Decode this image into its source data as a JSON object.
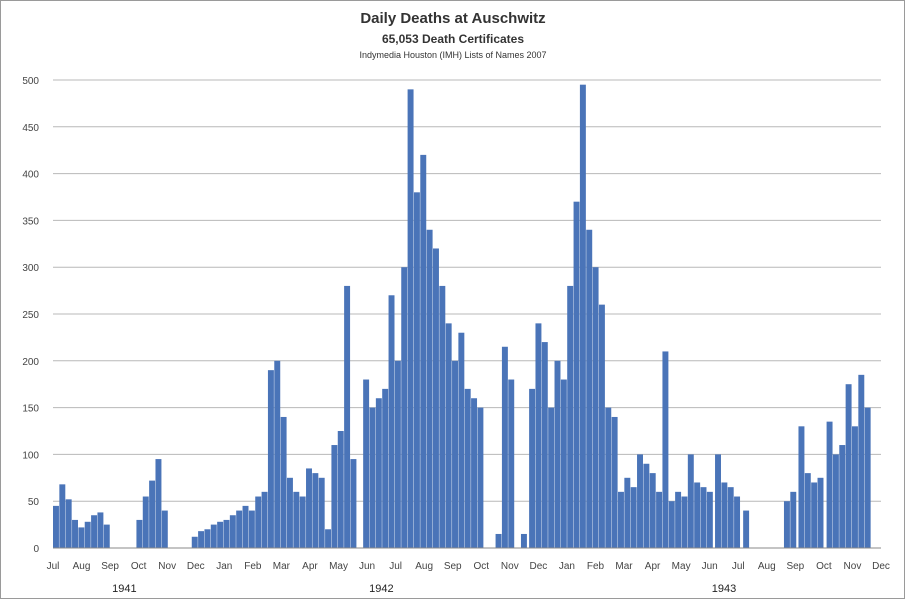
{
  "chart_data": {
    "type": "bar",
    "title": "Daily Deaths at Auschwitz",
    "subtitle": "65,053 Death Certificates",
    "source": "Indymedia Houston (IMH) Lists of Names 2007",
    "xlabel": "",
    "ylabel": "",
    "ylim": [
      0,
      500
    ],
    "yticks": [
      0,
      50,
      100,
      150,
      200,
      250,
      300,
      350,
      400,
      450,
      500
    ],
    "grid": true,
    "legend": "none",
    "bar_color": "#4a74b8",
    "x_start": "1941-07-01",
    "x_end": "1943-12-31",
    "month_labels": [
      "Jul",
      "Aug",
      "Sep",
      "Oct",
      "Nov",
      "Dec",
      "Jan",
      "Feb",
      "Mar",
      "Apr",
      "May",
      "Jun",
      "Jul",
      "Aug",
      "Sep",
      "Oct",
      "Nov",
      "Dec",
      "Jan",
      "Feb",
      "Mar",
      "Apr",
      "May",
      "Jun",
      "Jul",
      "Aug",
      "Sep",
      "Oct",
      "Nov",
      "Dec"
    ],
    "year_labels": [
      "1941",
      "1942",
      "1943"
    ],
    "series": [
      {
        "values": [
          [
            "1941-07-01",
            45
          ],
          [
            "1941-07-08",
            68
          ],
          [
            "1941-07-15",
            52
          ],
          [
            "1941-07-22",
            30
          ],
          [
            "1941-07-29",
            22
          ],
          [
            "1941-08-05",
            28
          ],
          [
            "1941-08-12",
            35
          ],
          [
            "1941-08-19",
            38
          ],
          [
            "1941-08-26",
            25
          ],
          [
            "1941-10-01",
            30
          ],
          [
            "1941-10-08",
            55
          ],
          [
            "1941-10-15",
            72
          ],
          [
            "1941-10-22",
            95
          ],
          [
            "1941-10-29",
            40
          ],
          [
            "1941-12-01",
            12
          ],
          [
            "1941-12-08",
            18
          ],
          [
            "1941-12-15",
            20
          ],
          [
            "1941-12-22",
            25
          ],
          [
            "1941-12-29",
            28
          ],
          [
            "1942-01-05",
            30
          ],
          [
            "1942-01-12",
            35
          ],
          [
            "1942-01-19",
            40
          ],
          [
            "1942-01-26",
            45
          ],
          [
            "1942-02-02",
            40
          ],
          [
            "1942-02-09",
            55
          ],
          [
            "1942-02-16",
            60
          ],
          [
            "1942-02-23",
            190
          ],
          [
            "1942-03-02",
            200
          ],
          [
            "1942-03-09",
            140
          ],
          [
            "1942-03-16",
            75
          ],
          [
            "1942-03-23",
            60
          ],
          [
            "1942-03-30",
            55
          ],
          [
            "1942-04-06",
            85
          ],
          [
            "1942-04-13",
            80
          ],
          [
            "1942-04-20",
            75
          ],
          [
            "1942-04-27",
            20
          ],
          [
            "1942-05-04",
            110
          ],
          [
            "1942-05-11",
            125
          ],
          [
            "1942-05-18",
            280
          ],
          [
            "1942-05-25",
            95
          ],
          [
            "1942-06-08",
            180
          ],
          [
            "1942-06-15",
            150
          ],
          [
            "1942-06-22",
            160
          ],
          [
            "1942-06-29",
            170
          ],
          [
            "1942-07-06",
            270
          ],
          [
            "1942-07-13",
            200
          ],
          [
            "1942-07-20",
            300
          ],
          [
            "1942-07-27",
            490
          ],
          [
            "1942-08-03",
            380
          ],
          [
            "1942-08-10",
            420
          ],
          [
            "1942-08-17",
            340
          ],
          [
            "1942-08-24",
            320
          ],
          [
            "1942-08-31",
            280
          ],
          [
            "1942-09-07",
            240
          ],
          [
            "1942-09-14",
            200
          ],
          [
            "1942-09-21",
            230
          ],
          [
            "1942-09-28",
            170
          ],
          [
            "1942-10-05",
            160
          ],
          [
            "1942-10-12",
            150
          ],
          [
            "1942-11-01",
            15
          ],
          [
            "1942-11-08",
            215
          ],
          [
            "1942-11-15",
            180
          ],
          [
            "1942-11-29",
            15
          ],
          [
            "1942-12-08",
            170
          ],
          [
            "1942-12-15",
            240
          ],
          [
            "1942-12-22",
            220
          ],
          [
            "1942-12-29",
            150
          ],
          [
            "1943-01-05",
            200
          ],
          [
            "1943-01-12",
            180
          ],
          [
            "1943-01-19",
            280
          ],
          [
            "1943-01-26",
            370
          ],
          [
            "1943-02-02",
            495
          ],
          [
            "1943-02-09",
            340
          ],
          [
            "1943-02-16",
            300
          ],
          [
            "1943-02-23",
            260
          ],
          [
            "1943-03-02",
            150
          ],
          [
            "1943-03-09",
            140
          ],
          [
            "1943-03-16",
            60
          ],
          [
            "1943-03-23",
            75
          ],
          [
            "1943-03-30",
            65
          ],
          [
            "1943-04-06",
            100
          ],
          [
            "1943-04-13",
            90
          ],
          [
            "1943-04-20",
            80
          ],
          [
            "1943-04-27",
            60
          ],
          [
            "1943-05-04",
            210
          ],
          [
            "1943-05-11",
            50
          ],
          [
            "1943-05-18",
            60
          ],
          [
            "1943-05-25",
            55
          ],
          [
            "1943-06-01",
            100
          ],
          [
            "1943-06-08",
            70
          ],
          [
            "1943-06-15",
            65
          ],
          [
            "1943-06-22",
            60
          ],
          [
            "1943-07-01",
            100
          ],
          [
            "1943-07-08",
            70
          ],
          [
            "1943-07-15",
            65
          ],
          [
            "1943-07-22",
            55
          ],
          [
            "1943-08-01",
            40
          ],
          [
            "1943-09-15",
            50
          ],
          [
            "1943-09-22",
            60
          ],
          [
            "1943-10-01",
            130
          ],
          [
            "1943-10-08",
            80
          ],
          [
            "1943-10-15",
            70
          ],
          [
            "1943-10-22",
            75
          ],
          [
            "1943-11-01",
            135
          ],
          [
            "1943-11-08",
            100
          ],
          [
            "1943-11-15",
            110
          ],
          [
            "1943-11-22",
            175
          ],
          [
            "1943-11-29",
            130
          ],
          [
            "1943-12-06",
            185
          ],
          [
            "1943-12-13",
            150
          ]
        ]
      }
    ]
  }
}
